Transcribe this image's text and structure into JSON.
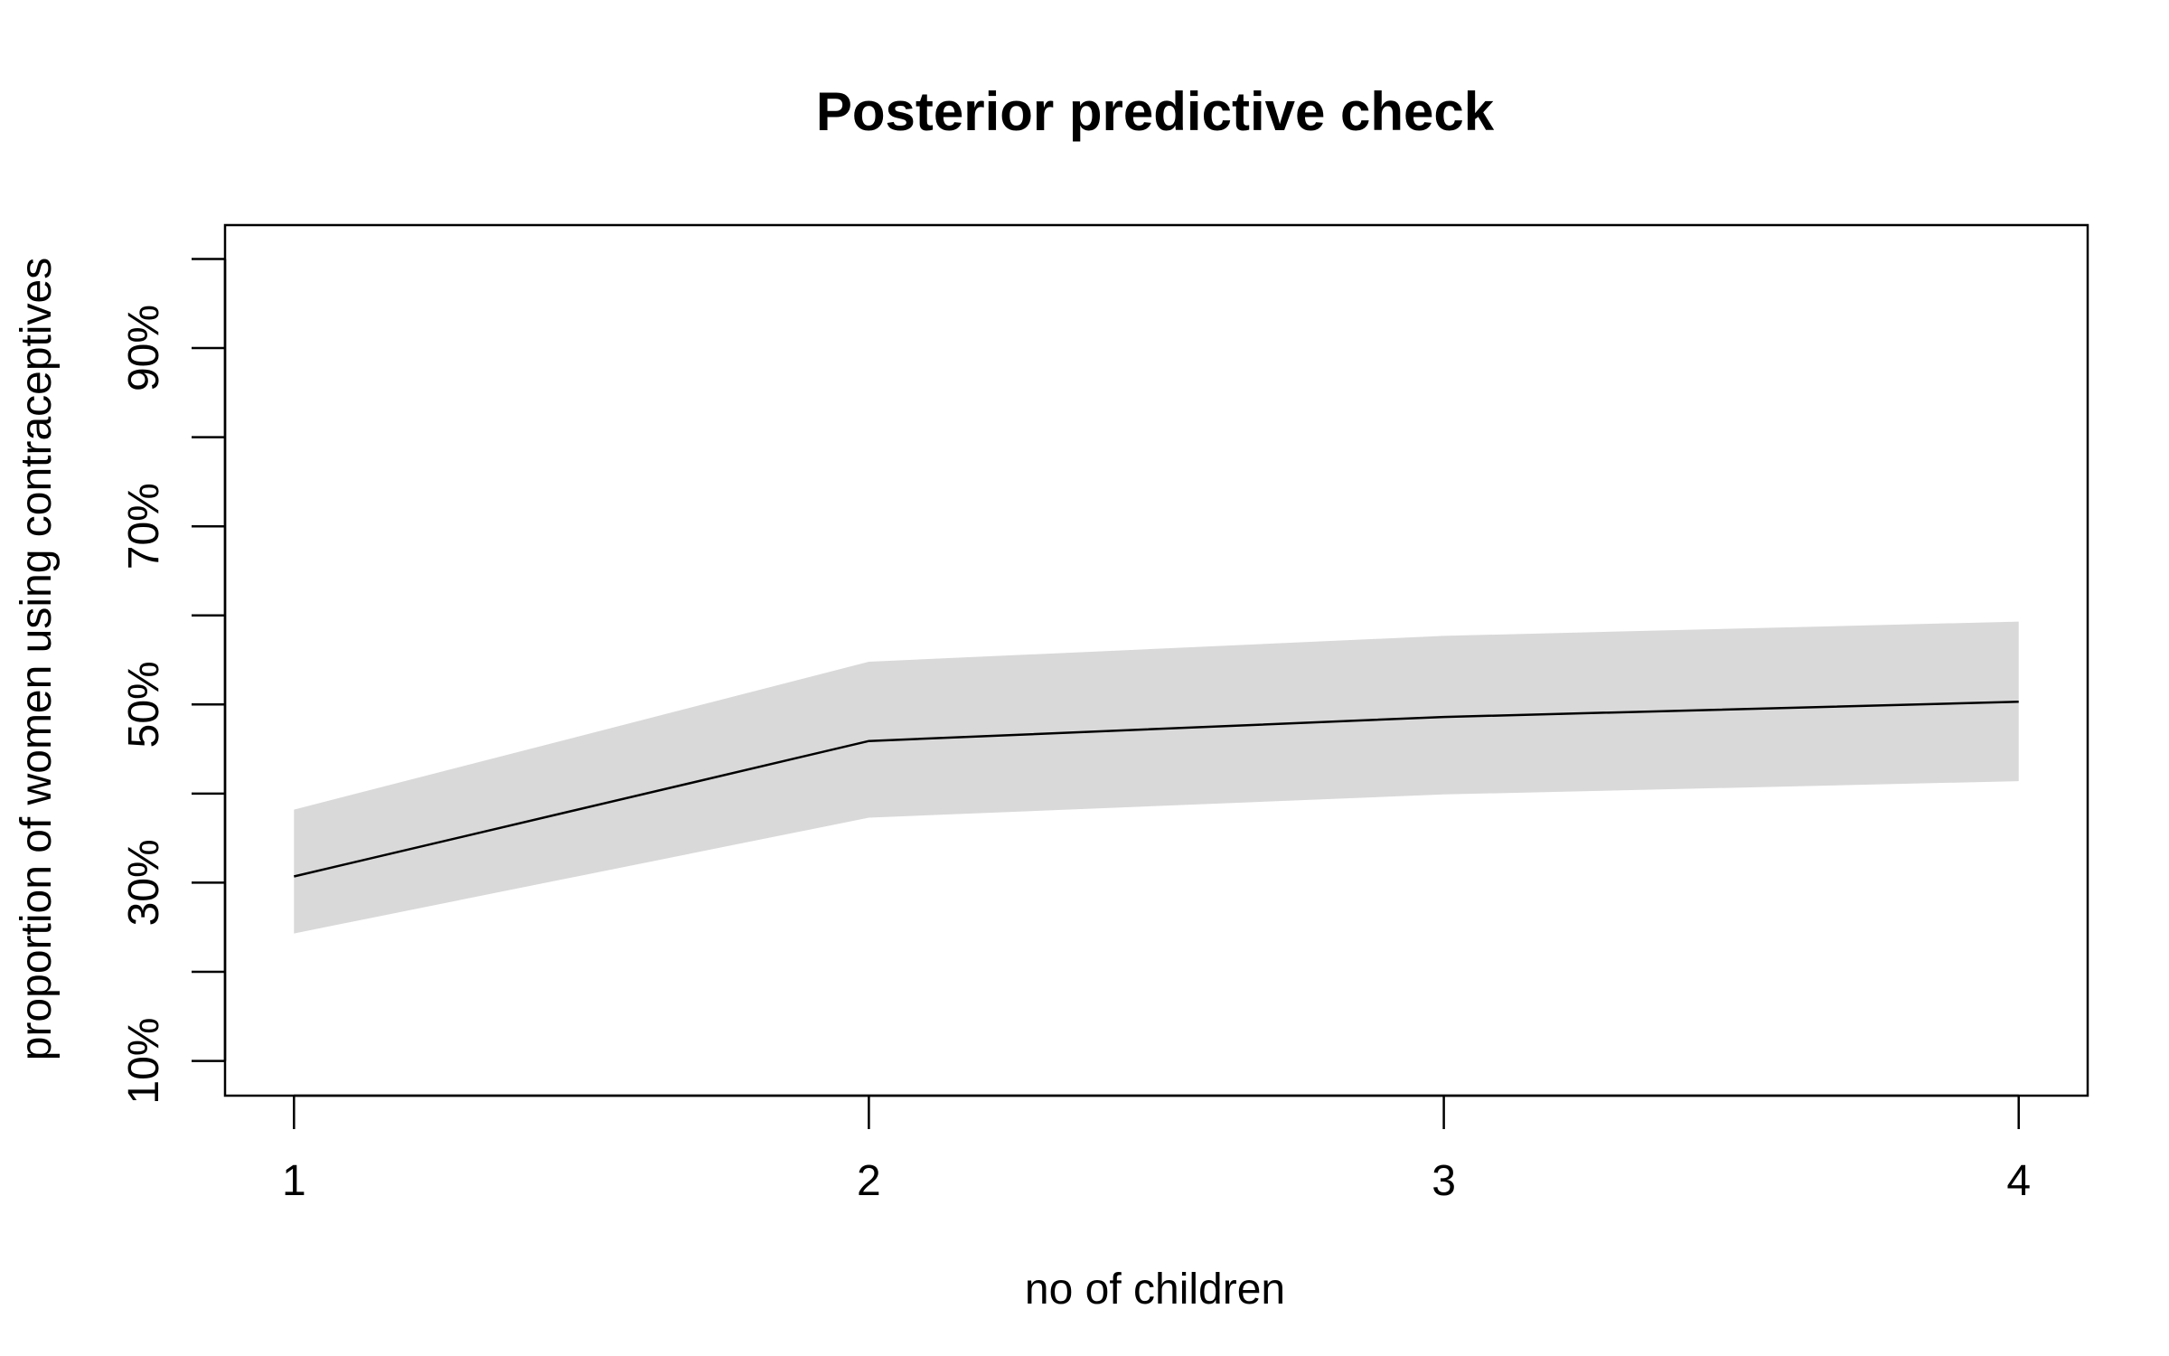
{
  "chart_data": {
    "type": "line",
    "title": "Posterior predictive check",
    "xlabel": "no of children",
    "ylabel": "proportion of women using contraceptives",
    "x": [
      1,
      2,
      3,
      4
    ],
    "xlim": [
      0.88,
      4.12
    ],
    "ylim": [
      0.061,
      1.038
    ],
    "y_ticks": [
      0.1,
      0.2,
      0.3,
      0.4,
      0.5,
      0.6,
      0.7,
      0.8,
      0.9,
      1.0
    ],
    "y_tick_labels": [
      {
        "value": 0.1,
        "label": "10%"
      },
      {
        "value": 0.3,
        "label": "30%"
      },
      {
        "value": 0.5,
        "label": "50%"
      },
      {
        "value": 0.7,
        "label": "70%"
      },
      {
        "value": 0.9,
        "label": "90%"
      }
    ],
    "x_tick_labels": [
      {
        "value": 1,
        "label": "1"
      },
      {
        "value": 2,
        "label": "2"
      },
      {
        "value": 3,
        "label": "3"
      },
      {
        "value": 4,
        "label": "4"
      }
    ],
    "series": [
      {
        "values": [
          0.307,
          0.459,
          0.486,
          0.503
        ],
        "lower": [
          0.243,
          0.373,
          0.399,
          0.414
        ],
        "upper": [
          0.382,
          0.548,
          0.577,
          0.593
        ]
      }
    ],
    "grid": false,
    "colors": {
      "line": "#000000",
      "band": "#d9d9d9",
      "axis": "#000000"
    }
  }
}
